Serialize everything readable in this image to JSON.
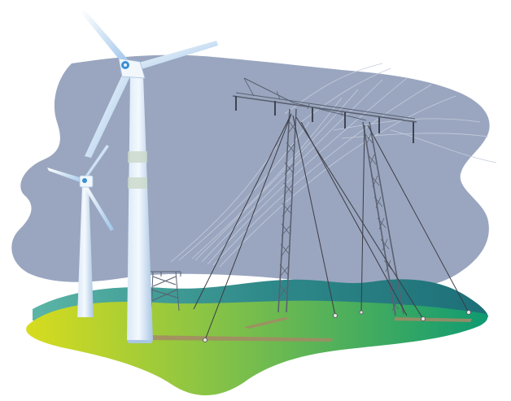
{
  "illustration": {
    "elements": [
      "storm-sky",
      "wind-turbine-large",
      "wind-turbine-small",
      "transmission-tower-main",
      "transmission-tower-distant",
      "power-lines",
      "guy-wires",
      "hills",
      "grass-field"
    ],
    "colors": {
      "sky": "#9aa6bf",
      "sky_edge": "#8c98b3",
      "turbine_light": "#e8f2fb",
      "turbine_shadow": "#a9c6e3",
      "turbine_accent": "#3a8fd6",
      "tower": "#5a6070",
      "wire": "#3c3c44",
      "field_left": "#d7dc1e",
      "field_mid": "#7ec04a",
      "field_right": "#0f9a72",
      "hills_dark": "#1d6f78",
      "hills_light": "#5ab5a6",
      "ground_shadow": "#a58a66"
    }
  }
}
